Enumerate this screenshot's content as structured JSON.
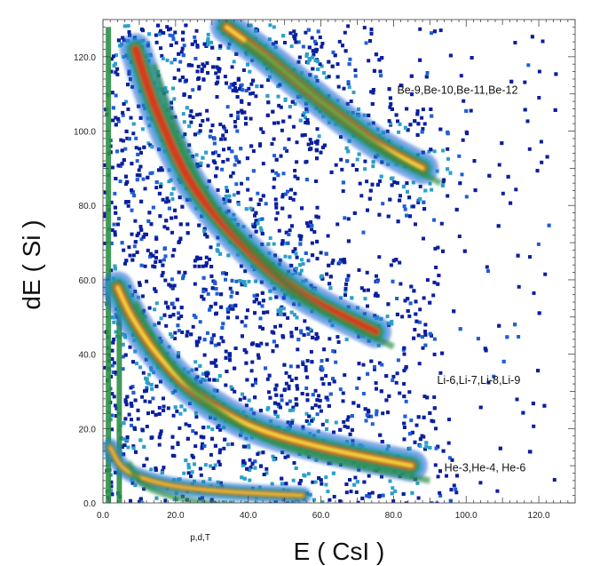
{
  "chart_data": {
    "type": "heatmap",
    "title": "",
    "xlabel": "E ( CsI )",
    "ylabel": "dE ( Si )",
    "xlim": [
      0,
      130
    ],
    "ylim": [
      0,
      130
    ],
    "x_ticks": [
      "0.0",
      "20.0",
      "40.0",
      "60.0",
      "80.0",
      "100.0",
      "120.0"
    ],
    "y_ticks": [
      "0.0",
      "20.0",
      "40.0",
      "60.0",
      "80.0",
      "100.0",
      "120.0"
    ],
    "colors": [
      "#0a1f9e",
      "#1f5fd6",
      "#2ca0c8",
      "#2e8f46",
      "#6fa83c",
      "#d83a1c",
      "#f7e23a"
    ],
    "annotations": [
      {
        "text": "Be-9,Be-10,Be-11,Be-12",
        "x": 81,
        "y": 110
      },
      {
        "text": "Li-6,Li-7,Li-8,Li-9",
        "x": 92,
        "y": 32
      },
      {
        "text": "He-3,He-4, He-6",
        "x": 94,
        "y": 8.5
      },
      {
        "text": "p,d,T",
        "x": 24,
        "y": -10
      }
    ],
    "series": [
      {
        "name": "p,d,T",
        "points": [
          [
            2,
            15
          ],
          [
            5,
            10
          ],
          [
            10,
            7
          ],
          [
            20,
            4.5
          ],
          [
            35,
            3
          ],
          [
            55,
            2
          ]
        ]
      },
      {
        "name": "He-3,He-4, He-6",
        "points": [
          [
            4,
            58
          ],
          [
            8,
            50
          ],
          [
            15,
            40
          ],
          [
            25,
            30
          ],
          [
            40,
            21
          ],
          [
            60,
            15
          ],
          [
            85,
            10
          ]
        ]
      },
      {
        "name": "Li-6,Li-7,Li-8,Li-9",
        "points": [
          [
            9,
            122
          ],
          [
            15,
            105
          ],
          [
            25,
            85
          ],
          [
            40,
            68
          ],
          [
            55,
            56
          ],
          [
            75,
            46
          ]
        ]
      },
      {
        "name": "Be-9,Be-10,Be-11,Be-12",
        "points": [
          [
            34,
            128
          ],
          [
            45,
            120
          ],
          [
            60,
            108
          ],
          [
            75,
            97
          ],
          [
            88,
            90
          ]
        ]
      }
    ]
  }
}
